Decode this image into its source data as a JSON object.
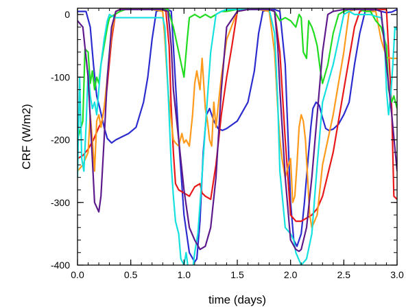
{
  "chart_data": {
    "type": "line",
    "title": "",
    "xlabel": "time (days)",
    "ylabel": "CRF (W/m2)",
    "xlim": [
      0.0,
      3.0
    ],
    "ylim": [
      -400,
      10
    ],
    "x_ticks": [
      "0.0",
      "0.5",
      "1.0",
      "1.5",
      "2.0",
      "2.5",
      "3.0"
    ],
    "y_ticks": [
      "0",
      "-100",
      "-200",
      "-300",
      "-400"
    ],
    "grid": false,
    "legend": "none",
    "series": [
      {
        "color": "#2b2bd0",
        "x": [
          0.0,
          0.08,
          0.12,
          0.15,
          0.18,
          0.21,
          0.25,
          0.28,
          0.32,
          0.36,
          0.42,
          0.48,
          0.55,
          0.62,
          0.66,
          0.7,
          0.74,
          0.8,
          0.85,
          0.88,
          0.9,
          0.95,
          1.0,
          1.05,
          1.1,
          1.12,
          1.15,
          1.18,
          1.21,
          1.24,
          1.28,
          1.32,
          1.36,
          1.4,
          1.5,
          1.6,
          1.66,
          1.7,
          1.74,
          1.8,
          1.85,
          1.9,
          1.95,
          2.0,
          2.03,
          2.06,
          2.1,
          2.13,
          2.16,
          2.19,
          2.21,
          2.24,
          2.27,
          2.3,
          2.33,
          2.36,
          2.4,
          2.45,
          2.5,
          2.55,
          2.6,
          2.65,
          2.7,
          2.8,
          2.85,
          2.9,
          2.95,
          3.0
        ],
        "y": [
          5,
          5,
          -20,
          -80,
          -130,
          -150,
          -180,
          -198,
          -205,
          -200,
          -195,
          -190,
          -180,
          -140,
          -100,
          -40,
          5,
          8,
          8,
          5,
          -50,
          -200,
          -320,
          -380,
          -395,
          -390,
          -330,
          -220,
          -160,
          -150,
          -170,
          -182,
          -185,
          -182,
          -170,
          -140,
          -90,
          -30,
          5,
          8,
          8,
          5,
          -80,
          -300,
          -360,
          -370,
          -350,
          -300,
          -240,
          -180,
          -150,
          -140,
          -145,
          -165,
          -182,
          -185,
          -183,
          -175,
          -160,
          -140,
          -80,
          -30,
          5,
          8,
          5,
          3,
          4,
          8
        ]
      },
      {
        "color": "#e81818",
        "x": [
          0.0,
          0.05,
          0.1,
          0.15,
          0.2,
          0.23,
          0.27,
          0.32,
          0.36,
          0.4,
          0.45,
          0.5,
          0.55,
          0.6,
          0.62,
          0.65,
          0.7,
          0.75,
          0.8,
          0.83,
          0.86,
          0.88,
          0.9,
          0.92,
          0.95,
          1.0,
          1.05,
          1.1,
          1.15,
          1.17,
          1.2,
          1.25,
          1.3,
          1.35,
          1.4,
          1.45,
          1.5,
          1.55,
          1.6,
          1.65,
          1.7,
          1.75,
          1.8,
          1.85,
          1.9,
          1.95,
          2.0,
          2.05,
          2.1,
          2.15,
          2.2,
          2.25,
          2.3,
          2.4,
          2.5,
          2.6,
          2.65,
          2.7,
          2.75,
          2.8,
          2.85,
          2.9,
          2.95,
          2.97,
          3.0
        ],
        "y": [
          -230,
          -225,
          -215,
          -200,
          -180,
          -170,
          -130,
          -40,
          5,
          8,
          8,
          8,
          8,
          8,
          8,
          8,
          8,
          8,
          8,
          5,
          -50,
          -150,
          -220,
          -270,
          -280,
          -285,
          -290,
          -275,
          -270,
          -285,
          -290,
          -295,
          -240,
          -160,
          -100,
          -50,
          5,
          8,
          8,
          8,
          8,
          8,
          8,
          5,
          -60,
          -200,
          -320,
          -330,
          -330,
          -325,
          -320,
          -310,
          -290,
          -220,
          -120,
          -20,
          5,
          8,
          8,
          8,
          8,
          8,
          -150,
          -290,
          -295
        ]
      },
      {
        "color": "#ff9a1a",
        "x": [
          0.0,
          0.05,
          0.1,
          0.12,
          0.14,
          0.16,
          0.18,
          0.2,
          0.22,
          0.25,
          0.28,
          0.32,
          0.36,
          0.4,
          0.5,
          0.6,
          0.7,
          0.8,
          0.82,
          0.85,
          0.88,
          0.9,
          0.92,
          0.95,
          0.98,
          1.0,
          1.02,
          1.05,
          1.08,
          1.1,
          1.12,
          1.15,
          1.17,
          1.2,
          1.22,
          1.24,
          1.26,
          1.28,
          1.3,
          1.35,
          1.4,
          1.5,
          1.6,
          1.7,
          1.8,
          1.85,
          1.88,
          1.9,
          1.92,
          1.95,
          1.98,
          2.0,
          2.02,
          2.04,
          2.06,
          2.08,
          2.1,
          2.12,
          2.14,
          2.16,
          2.18,
          2.2,
          2.25,
          2.3,
          2.4,
          2.5,
          2.55,
          2.6,
          2.65,
          2.7,
          2.75,
          2.8,
          2.85,
          2.9,
          2.95,
          3.0
        ],
        "y": [
          -250,
          -240,
          -220,
          -160,
          -200,
          -250,
          -170,
          -160,
          -180,
          -150,
          -100,
          -30,
          5,
          8,
          8,
          8,
          8,
          5,
          -40,
          -120,
          -170,
          -200,
          -205,
          -210,
          -190,
          -205,
          -200,
          -210,
          -160,
          -110,
          -90,
          -120,
          -70,
          -150,
          -170,
          -200,
          -210,
          -140,
          -180,
          -100,
          -40,
          5,
          8,
          8,
          5,
          -60,
          -150,
          -200,
          -230,
          -260,
          -240,
          -230,
          -300,
          -290,
          -240,
          -180,
          -160,
          -170,
          -200,
          -260,
          -320,
          -340,
          -320,
          -240,
          -160,
          -60,
          5,
          8,
          8,
          8,
          5,
          5,
          -40,
          -68,
          -70,
          -70
        ]
      },
      {
        "color": "#1fdc1f",
        "x": [
          0.0,
          0.05,
          0.07,
          0.1,
          0.12,
          0.14,
          0.16,
          0.18,
          0.2,
          0.22,
          0.25,
          0.28,
          0.3,
          0.35,
          0.4,
          0.45,
          0.5,
          0.55,
          0.6,
          0.7,
          0.8,
          0.85,
          0.9,
          0.95,
          1.0,
          1.03,
          1.05,
          1.1,
          1.15,
          1.2,
          1.25,
          1.3,
          1.35,
          1.4,
          1.5,
          1.6,
          1.7,
          1.8,
          1.85,
          1.9,
          1.95,
          2.0,
          2.05,
          2.08,
          2.1,
          2.12,
          2.15,
          2.17,
          2.2,
          2.22,
          2.25,
          2.28,
          2.3,
          2.35,
          2.4,
          2.45,
          2.5,
          2.55,
          2.6,
          2.65,
          2.7,
          2.75,
          2.8,
          2.85,
          2.9,
          2.92,
          2.95,
          2.97,
          3.0
        ],
        "y": [
          -200,
          -170,
          -55,
          -60,
          -110,
          -90,
          -120,
          -100,
          -110,
          -80,
          -50,
          -20,
          -5,
          0,
          5,
          8,
          8,
          8,
          8,
          8,
          8,
          8,
          -20,
          -60,
          -100,
          -40,
          -5,
          0,
          -5,
          0,
          -5,
          0,
          5,
          5,
          8,
          8,
          8,
          8,
          5,
          -10,
          -5,
          -10,
          -20,
          0,
          -5,
          -60,
          -70,
          -10,
          -20,
          -30,
          -50,
          -90,
          -110,
          -80,
          -30,
          0,
          5,
          8,
          8,
          8,
          5,
          5,
          -10,
          -20,
          -50,
          -120,
          -140,
          -130,
          -150
        ]
      },
      {
        "color": "#14e0e0",
        "x": [
          0.0,
          0.02,
          0.04,
          0.06,
          0.08,
          0.1,
          0.12,
          0.14,
          0.16,
          0.18,
          0.2,
          0.22,
          0.25,
          0.28,
          0.3,
          0.35,
          0.4,
          0.45,
          0.5,
          0.6,
          0.7,
          0.8,
          0.82,
          0.85,
          0.88,
          0.9,
          0.92,
          0.95,
          0.97,
          1.0,
          1.02,
          1.05,
          1.08,
          1.1,
          1.13,
          1.16,
          1.2,
          1.25,
          1.3,
          1.35,
          1.4,
          1.5,
          1.6,
          1.7,
          1.8,
          1.85,
          1.88,
          1.9,
          1.95,
          2.0,
          2.03,
          2.05,
          2.1,
          2.15,
          2.2,
          2.25,
          2.3,
          2.35,
          2.4,
          2.45,
          2.5,
          2.55,
          2.6,
          2.7,
          2.75,
          2.8,
          2.85,
          2.88,
          2.9,
          2.92,
          2.94,
          2.96,
          2.98,
          3.0
        ],
        "y": [
          -260,
          -100,
          -230,
          -250,
          -180,
          -90,
          -130,
          -150,
          -140,
          -160,
          -120,
          -80,
          -40,
          -10,
          0,
          -5,
          -5,
          -5,
          -5,
          -5,
          -5,
          -5,
          -20,
          -120,
          -240,
          -290,
          -330,
          -350,
          -390,
          -400,
          -380,
          -420,
          -410,
          -380,
          -350,
          -280,
          -180,
          -60,
          0,
          5,
          8,
          8,
          8,
          8,
          8,
          -30,
          -140,
          -250,
          -340,
          -350,
          -360,
          -380,
          -400,
          -390,
          -350,
          -240,
          -140,
          -110,
          -80,
          -40,
          0,
          5,
          0,
          0,
          0,
          -3,
          -5,
          -30,
          -120,
          -160,
          -130,
          -80,
          -20,
          -25
        ]
      },
      {
        "color": "#5c1a8c",
        "x": [
          0.0,
          0.05,
          0.1,
          0.13,
          0.16,
          0.2,
          0.22,
          0.25,
          0.28,
          0.32,
          0.36,
          0.4,
          0.5,
          0.6,
          0.7,
          0.8,
          0.85,
          0.88,
          0.9,
          0.95,
          1.0,
          1.05,
          1.1,
          1.15,
          1.2,
          1.25,
          1.3,
          1.35,
          1.4,
          1.5,
          1.6,
          1.7,
          1.8,
          1.85,
          1.88,
          1.9,
          1.95,
          2.0,
          2.05,
          2.08,
          2.1,
          2.15,
          2.2,
          2.25,
          2.3,
          2.35,
          2.4,
          2.5,
          2.6,
          2.7,
          2.8,
          2.85,
          2.9,
          2.95,
          3.0
        ],
        "y": [
          -10,
          -20,
          -100,
          -200,
          -300,
          -315,
          -290,
          -200,
          -100,
          -20,
          5,
          8,
          8,
          8,
          8,
          8,
          5,
          -50,
          -120,
          -200,
          -280,
          -340,
          -360,
          -375,
          -370,
          -340,
          -260,
          -120,
          -20,
          5,
          8,
          8,
          8,
          5,
          -50,
          -120,
          -260,
          -360,
          -375,
          -378,
          -375,
          -340,
          -260,
          -160,
          -60,
          0,
          5,
          8,
          8,
          8,
          8,
          5,
          -80,
          -160,
          -250
        ]
      }
    ]
  }
}
